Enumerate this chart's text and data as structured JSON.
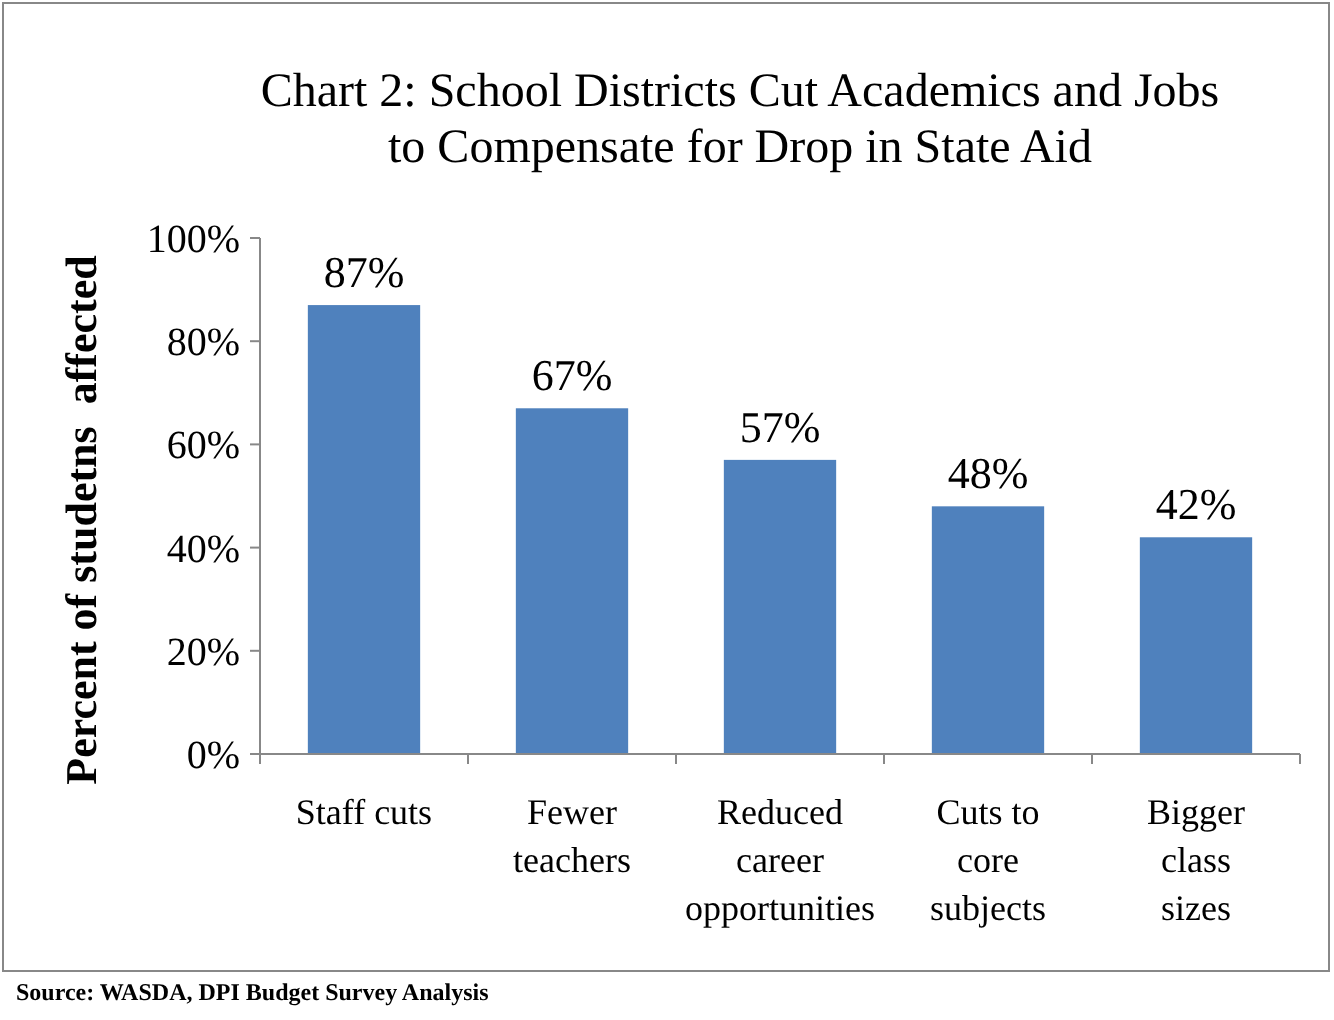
{
  "chart_data": {
    "type": "bar",
    "title": "Chart 2: School Districts Cut Academics and Jobs to Compensate for Drop in State Aid",
    "ylabel": "Percent of studetns  affected",
    "categories": [
      "Staff cuts",
      "Fewer teachers",
      "Reduced career opportunities",
      "Cuts to core subjects",
      "Bigger class sizes"
    ],
    "values": [
      87,
      67,
      57,
      48,
      42
    ],
    "value_labels": [
      "87%",
      "67%",
      "57%",
      "48%",
      "42%"
    ],
    "color": "#4f81bd",
    "ylim": [
      0,
      100
    ],
    "yticks": [
      {
        "value": 0,
        "label": "0%"
      },
      {
        "value": 20,
        "label": "20%"
      },
      {
        "value": 40,
        "label": "40%"
      },
      {
        "value": 60,
        "label": "60%"
      },
      {
        "value": 80,
        "label": "80%"
      },
      {
        "value": 100,
        "label": "100%"
      }
    ],
    "grid": false,
    "annotations": [
      "Source: WASDA, DPI Budget Survey Analysis"
    ]
  }
}
